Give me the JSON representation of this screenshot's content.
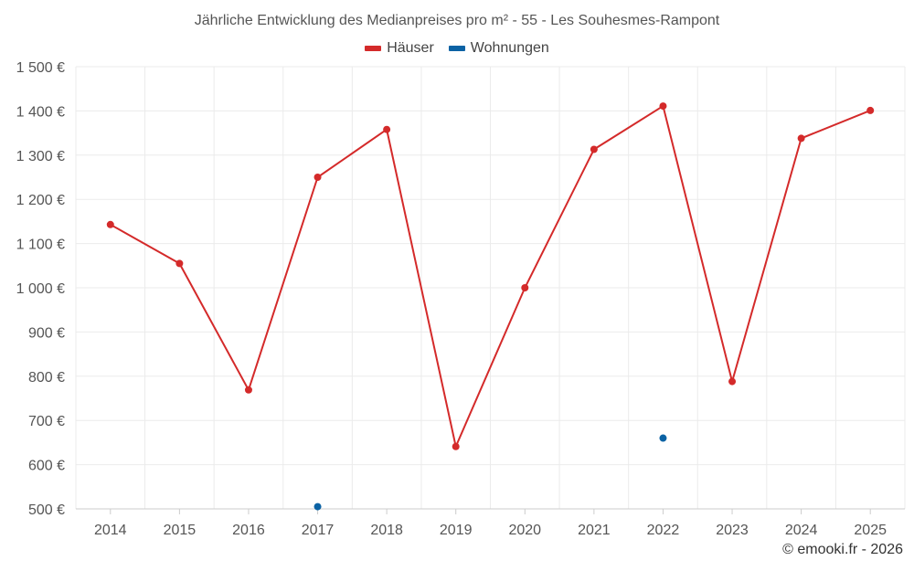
{
  "chart_data": {
    "type": "line",
    "title": "Jährliche Entwicklung des Medianpreises pro m² - 55 - Les Souhesmes-Rampont",
    "categories": [
      "2014",
      "2015",
      "2016",
      "2017",
      "2018",
      "2019",
      "2020",
      "2021",
      "2022",
      "2023",
      "2024",
      "2025"
    ],
    "series": [
      {
        "name": "Häuser",
        "color": "#d42a2a",
        "values": [
          1143,
          1055,
          769,
          1250,
          1358,
          641,
          1000,
          1313,
          1411,
          788,
          1338,
          1401
        ]
      },
      {
        "name": "Wohnungen",
        "color": "#0b62a4",
        "values": [
          null,
          null,
          null,
          505,
          null,
          null,
          null,
          null,
          660,
          null,
          null,
          null
        ]
      }
    ],
    "yticks": [
      "500 €",
      "600 €",
      "700 €",
      "800 €",
      "900 €",
      "1 000 €",
      "1 100 €",
      "1 200 €",
      "1 300 €",
      "1 400 €",
      "1 500 €"
    ],
    "ylim": [
      500,
      1500
    ],
    "xlabel": "",
    "ylabel": "",
    "grid": true,
    "legend": "top-center"
  },
  "footer": "© emooki.fr - 2026"
}
